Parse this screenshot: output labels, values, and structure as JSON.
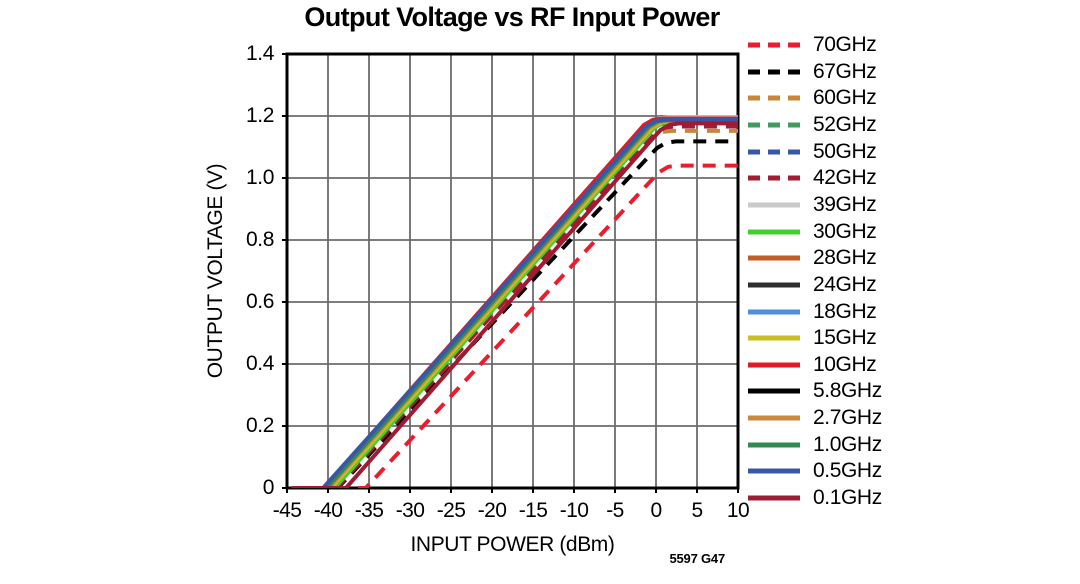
{
  "footnote": "5597 G47",
  "chart_data": {
    "type": "line",
    "title": "Output Voltage vs RF Input Power",
    "xlabel": "INPUT POWER (dBm)",
    "ylabel": "OUTPUT VOLTAGE (V)",
    "xlim": [
      -45,
      10
    ],
    "ylim": [
      0,
      1.4
    ],
    "x_ticks": [
      "-45",
      "-40",
      "-35",
      "-30",
      "-25",
      "-20",
      "-15",
      "-10",
      "-5",
      "0",
      "5",
      "10"
    ],
    "y_ticks": [
      "1.4",
      "1.2",
      "1.0",
      "0.8",
      "0.6",
      "0.4",
      "0.2",
      "0"
    ],
    "grid": true,
    "legend_position": "right",
    "style": {
      "background": "#ffffff",
      "axis_color": "#000000",
      "grid_color": "#6b6b6b",
      "line_width": 4,
      "dash_pattern": "13 9"
    },
    "series": [
      {
        "name": "70GHz",
        "color": "#EC1B2E",
        "dashed": true,
        "points": [
          [
            -44.4,
            0
          ],
          [
            -35.4,
            0
          ],
          [
            -0.91,
            0.983
          ],
          [
            0.39,
            1.019
          ],
          [
            1.49,
            1.036
          ],
          [
            2.69,
            1.04
          ],
          [
            10,
            1.04
          ]
        ]
      },
      {
        "name": "67GHz",
        "color": "#000000",
        "dashed": true,
        "points": [
          [
            -44.4,
            0
          ],
          [
            -38.8,
            0
          ],
          [
            -1.15,
            1.062
          ],
          [
            0.15,
            1.097
          ],
          [
            1.25,
            1.114
          ],
          [
            2.45,
            1.118
          ],
          [
            10,
            1.118
          ]
        ]
      },
      {
        "name": "60GHz",
        "color": "#C8863B",
        "dashed": true,
        "points": [
          [
            -44.4,
            0
          ],
          [
            -39.2,
            0
          ],
          [
            -1.75,
            1.094
          ],
          [
            -0.45,
            1.131
          ],
          [
            0.65,
            1.148
          ],
          [
            1.85,
            1.152
          ],
          [
            10,
            1.152
          ]
        ]
      },
      {
        "name": "52GHz",
        "color": "#3F9C5C",
        "dashed": true,
        "points": [
          [
            -44.4,
            0
          ],
          [
            -40.0,
            0
          ],
          [
            -2.14,
            1.117
          ],
          [
            -0.84,
            1.155
          ],
          [
            0.26,
            1.172
          ],
          [
            1.46,
            1.176
          ],
          [
            10,
            1.176
          ]
        ]
      },
      {
        "name": "50GHz",
        "color": "#3A57A7",
        "dashed": true,
        "points": [
          [
            -44.4,
            0
          ],
          [
            -40.2,
            0
          ],
          [
            -2.2,
            1.121
          ],
          [
            -0.9,
            1.159
          ],
          [
            0.2,
            1.176
          ],
          [
            1.4,
            1.18
          ],
          [
            10,
            1.18
          ]
        ]
      },
      {
        "name": "42GHz",
        "color": "#A21D33",
        "dashed": true,
        "points": [
          [
            -44.4,
            0
          ],
          [
            -38.9,
            0
          ],
          [
            -1.37,
            1.107
          ],
          [
            -0.07,
            1.145
          ],
          [
            1.03,
            1.162
          ],
          [
            2.23,
            1.166
          ],
          [
            10,
            1.166
          ]
        ]
      },
      {
        "name": "39GHz",
        "color": "#C9CACB",
        "dashed": false,
        "points": [
          [
            -44.4,
            0
          ],
          [
            -40.3,
            0
          ],
          [
            -2.03,
            1.137
          ],
          [
            -0.73,
            1.175
          ],
          [
            0.37,
            1.192
          ],
          [
            1.57,
            1.196
          ],
          [
            10,
            1.196
          ]
        ]
      },
      {
        "name": "30GHz",
        "color": "#3FD02A",
        "dashed": false,
        "points": [
          [
            -44.4,
            0
          ],
          [
            -39.2,
            0
          ],
          [
            -1.54,
            1.122
          ],
          [
            -0.24,
            1.161
          ],
          [
            0.86,
            1.178
          ],
          [
            2.06,
            1.182
          ],
          [
            10,
            1.182
          ]
        ]
      },
      {
        "name": "28GHz",
        "color": "#C75B28",
        "dashed": false,
        "points": [
          [
            -44.4,
            0
          ],
          [
            -39.8,
            0
          ],
          [
            -1.93,
            1.125
          ],
          [
            -0.63,
            1.163
          ],
          [
            0.47,
            1.18
          ],
          [
            1.67,
            1.184
          ],
          [
            10,
            1.184
          ]
        ]
      },
      {
        "name": "24GHz",
        "color": "#2E2E2E",
        "dashed": false,
        "points": [
          [
            -44.4,
            0
          ],
          [
            -40.0,
            0
          ],
          [
            -2.07,
            1.127
          ],
          [
            -0.77,
            1.165
          ],
          [
            0.33,
            1.182
          ],
          [
            1.53,
            1.186
          ],
          [
            10,
            1.186
          ]
        ]
      },
      {
        "name": "18GHz",
        "color": "#4B8FE2",
        "dashed": false,
        "points": [
          [
            -44.4,
            0
          ],
          [
            -40.25,
            0
          ],
          [
            -2.18,
            1.131
          ],
          [
            -0.88,
            1.169
          ],
          [
            0.22,
            1.186
          ],
          [
            1.42,
            1.19
          ],
          [
            10,
            1.19
          ]
        ]
      },
      {
        "name": "15GHz",
        "color": "#C9BE26",
        "dashed": false,
        "points": [
          [
            -44.4,
            0
          ],
          [
            -39.6,
            0
          ],
          [
            -1.77,
            1.124
          ],
          [
            -0.47,
            1.162
          ],
          [
            0.63,
            1.179
          ],
          [
            1.83,
            1.183
          ],
          [
            10,
            1.183
          ]
        ]
      },
      {
        "name": "10GHz",
        "color": "#E11B22",
        "dashed": false,
        "points": [
          [
            -44.4,
            0
          ],
          [
            -40.5,
            0
          ],
          [
            -2.77,
            1.132
          ],
          [
            -1.47,
            1.171
          ],
          [
            -0.37,
            1.188
          ],
          [
            0.83,
            1.192
          ],
          [
            10,
            1.192
          ]
        ]
      },
      {
        "name": "5.8GHz",
        "color": "#000000",
        "dashed": false,
        "points": [
          [
            -44.4,
            0
          ],
          [
            -40.05,
            0
          ],
          [
            -2.15,
            1.126
          ],
          [
            -0.85,
            1.164
          ],
          [
            0.25,
            1.181
          ],
          [
            1.45,
            1.185
          ],
          [
            10,
            1.185
          ]
        ]
      },
      {
        "name": "2.7GHz",
        "color": "#C98A3E",
        "dashed": false,
        "points": [
          [
            -44.4,
            0
          ],
          [
            -39.9,
            0
          ],
          [
            -2.03,
            1.125
          ],
          [
            -0.73,
            1.163
          ],
          [
            0.37,
            1.18
          ],
          [
            1.57,
            1.184
          ],
          [
            10,
            1.184
          ]
        ]
      },
      {
        "name": "1.0GHz",
        "color": "#2F8B50",
        "dashed": false,
        "points": [
          [
            -44.4,
            0
          ],
          [
            -40.15,
            0
          ],
          [
            -2.18,
            1.128
          ],
          [
            -0.88,
            1.166
          ],
          [
            0.22,
            1.183
          ],
          [
            1.42,
            1.187
          ],
          [
            10,
            1.187
          ]
        ]
      },
      {
        "name": "0.5GHz",
        "color": "#3A57A7",
        "dashed": false,
        "points": [
          [
            -44.4,
            0
          ],
          [
            -40.6,
            0
          ],
          [
            -2.46,
            1.129
          ],
          [
            -1.16,
            1.167
          ],
          [
            -0.06,
            1.184
          ],
          [
            1.14,
            1.188
          ],
          [
            10,
            1.188
          ]
        ]
      },
      {
        "name": "0.1GHz",
        "color": "#9E1B32",
        "dashed": false,
        "points": [
          [
            -44.4,
            0
          ],
          [
            -37.8,
            0
          ],
          [
            -0.73,
            1.117
          ],
          [
            0.57,
            1.155
          ],
          [
            1.67,
            1.172
          ],
          [
            2.87,
            1.176
          ],
          [
            10,
            1.176
          ]
        ]
      }
    ]
  }
}
